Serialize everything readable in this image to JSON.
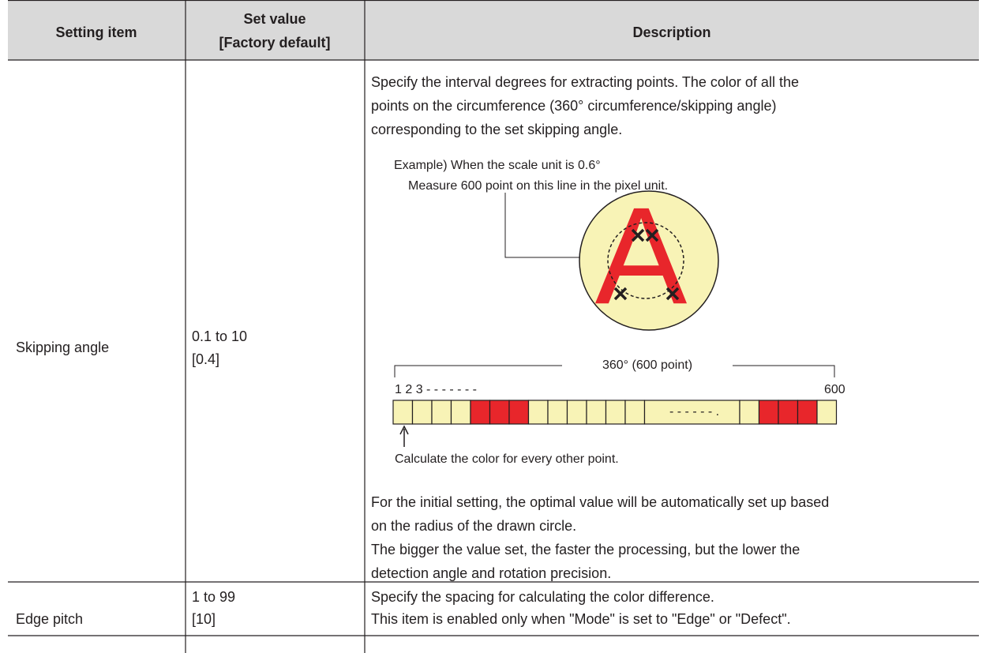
{
  "table": {
    "header": [
      "Setting item",
      [
        "Set value",
        "[Factory default]"
      ],
      "Description"
    ],
    "rows": [
      {
        "item": "Skipping angle",
        "value": [
          "0.1 to 10",
          "[0.4]"
        ],
        "description": {
          "intro": [
            "Specify the interval degrees for extracting points. The color of all the",
            "points on the circumference (360° circumference/skipping angle)",
            "corresponding to the set skipping angle."
          ],
          "figure": {
            "example": "Example) When the scale unit is 0.6°",
            "measure": "Measure 600 point on this line in the pixel unit.",
            "letter": "A",
            "span": "360° (600 point)",
            "start": "1  2  3 - - - - - - -",
            "end": "600",
            "gap": "- - - - - - .",
            "caption": "Calculate the color for every other point."
          },
          "notes": [
            "For the initial setting, the optimal value will be automatically set up based",
            "on the radius of the drawn circle.",
            "The bigger the value set, the faster the processing, but the lower the",
            "detection angle and rotation precision."
          ]
        }
      },
      {
        "item": "Edge pitch",
        "value": [
          "1 to 99",
          "[10]"
        ],
        "description": [
          "Specify the spacing for calculating the color difference.",
          "This item is enabled only when \"Mode\" is set to \"Edge\" or \"Defect\"."
        ]
      }
    ]
  }
}
